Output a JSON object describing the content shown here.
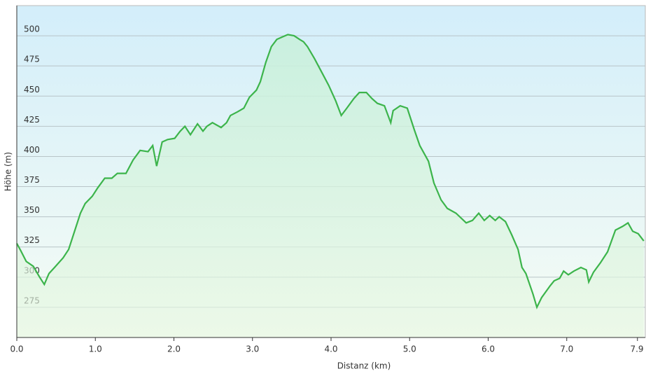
{
  "chart_data": {
    "type": "area",
    "x_label": "Distanz  (km)",
    "y_label": "Höhe (m)",
    "x": [
      0,
      0.05,
      0.12,
      0.21,
      0.29,
      0.35,
      0.41,
      0.48,
      0.59,
      0.66,
      0.75,
      0.81,
      0.87,
      0.96,
      1.03,
      1.12,
      1.21,
      1.28,
      1.39,
      1.48,
      1.57,
      1.67,
      1.73,
      1.78,
      1.85,
      1.92,
      2.01,
      2.08,
      2.14,
      2.21,
      2.3,
      2.37,
      2.42,
      2.49,
      2.6,
      2.67,
      2.72,
      2.81,
      2.89,
      2.96,
      3.05,
      3.1,
      3.17,
      3.24,
      3.31,
      3.38,
      3.45,
      3.53,
      3.6,
      3.65,
      3.7,
      3.79,
      3.88,
      3.97,
      4.06,
      4.13,
      4.2,
      4.29,
      4.36,
      4.45,
      4.52,
      4.59,
      4.68,
      4.76,
      4.79,
      4.88,
      4.97,
      5.06,
      5.13,
      5.24,
      5.31,
      5.4,
      5.48,
      5.59,
      5.72,
      5.8,
      5.88,
      5.95,
      6.02,
      6.09,
      6.14,
      6.22,
      6.3,
      6.38,
      6.43,
      6.48,
      6.57,
      6.62,
      6.68,
      6.79,
      6.84,
      6.91,
      6.96,
      7.02,
      7.09,
      7.18,
      7.25,
      7.28,
      7.34,
      7.43,
      7.52,
      7.62,
      7.71,
      7.78,
      7.84,
      7.91,
      7.98
    ],
    "values": [
      328,
      322,
      313,
      309,
      300,
      294,
      303,
      308,
      316,
      323,
      341,
      353,
      361,
      367,
      374,
      382,
      382,
      386,
      386,
      397,
      405,
      404,
      409,
      392,
      412,
      414,
      415,
      421,
      425,
      418,
      427,
      421,
      425,
      428,
      424,
      428,
      434,
      437,
      440,
      449,
      455,
      462,
      478,
      491,
      497,
      499,
      501,
      500,
      497,
      495,
      491,
      481,
      470,
      459,
      446,
      434,
      440,
      448,
      453,
      453,
      448,
      444,
      442,
      428,
      438,
      442,
      440,
      422,
      409,
      396,
      378,
      364,
      357,
      353,
      345,
      347,
      353,
      347,
      351,
      347,
      350,
      346,
      335,
      323,
      308,
      303,
      286,
      275,
      283,
      293,
      297,
      299,
      305,
      302,
      305,
      308,
      306,
      296,
      304,
      312,
      321,
      339,
      342,
      345,
      338,
      336,
      330
    ],
    "color": "#3cb44b",
    "xlim": [
      0,
      8.0
    ],
    "ylim": [
      250,
      525
    ],
    "xticks": [
      {
        "value": 0,
        "label": "0.0"
      },
      {
        "value": 1,
        "label": "1.0"
      },
      {
        "value": 2,
        "label": "2.0"
      },
      {
        "value": 3,
        "label": "3.0"
      },
      {
        "value": 4,
        "label": "4.0"
      },
      {
        "value": 5,
        "label": "5.0"
      },
      {
        "value": 6,
        "label": "6.0"
      },
      {
        "value": 7,
        "label": "7.0"
      },
      7.9
    ],
    "yticks": [
      275,
      300,
      325,
      350,
      375,
      400,
      425,
      450,
      475,
      500
    ],
    "grid": true
  }
}
